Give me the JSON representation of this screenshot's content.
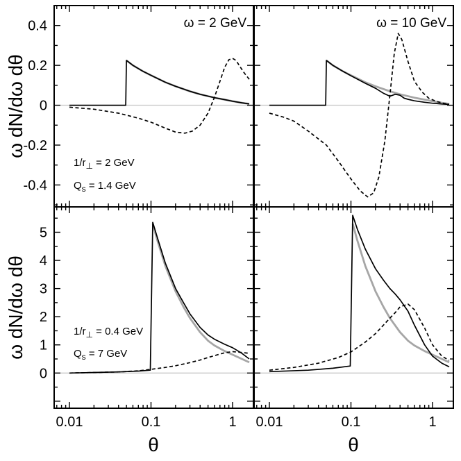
{
  "figure": {
    "ylabel": "ω dN/dω dθ",
    "xlabel": "θ"
  },
  "chart_data": [
    {
      "type": "line",
      "panel": "top-left",
      "title": "ω = 2 GeV",
      "xscale": "log",
      "xlim": [
        0.0065,
        1.8
      ],
      "ylim": [
        -0.51,
        0.5
      ],
      "xticks": [
        0.01,
        0.1,
        1
      ],
      "xtick_labels": [
        "0.01",
        "0.1",
        "1"
      ],
      "yticks": [
        -0.4,
        -0.2,
        0,
        0.2,
        0.4
      ],
      "ytick_labels": [
        "-0.4",
        "-0.2",
        "0",
        "0.2",
        "0.4"
      ],
      "annotations": [
        {
          "base": "1/r",
          "sub": "⊥",
          "tail": " = 2 GeV"
        },
        {
          "base": "Q",
          "sub": "s",
          "tail": " = 1.4 GeV"
        }
      ],
      "series": [
        {
          "name": "gray",
          "color": "#a6a6a6",
          "style": "solid",
          "x": [
            0.05,
            0.06,
            0.08,
            0.1,
            0.15,
            0.2,
            0.3,
            0.4,
            0.6,
            0.8,
            1.0,
            1.3,
            1.6
          ],
          "y": [
            0.225,
            0.2,
            0.17,
            0.15,
            0.115,
            0.095,
            0.07,
            0.055,
            0.038,
            0.028,
            0.02,
            0.012,
            0.007
          ]
        },
        {
          "name": "solid",
          "color": "#000000",
          "style": "solid",
          "x": [
            0.01,
            0.02,
            0.04,
            0.049,
            0.05,
            0.06,
            0.08,
            0.1,
            0.15,
            0.2,
            0.3,
            0.4,
            0.6,
            0.8,
            1.0,
            1.3,
            1.6
          ],
          "y": [
            0.0,
            0.0,
            0.0,
            0.0,
            0.225,
            0.2,
            0.17,
            0.15,
            0.115,
            0.095,
            0.07,
            0.055,
            0.038,
            0.028,
            0.02,
            0.012,
            0.007
          ]
        },
        {
          "name": "dashed",
          "color": "#000000",
          "style": "dashed",
          "x": [
            0.01,
            0.02,
            0.04,
            0.07,
            0.1,
            0.15,
            0.2,
            0.26,
            0.32,
            0.4,
            0.5,
            0.6,
            0.7,
            0.8,
            0.9,
            1.0,
            1.1,
            1.25,
            1.4,
            1.6
          ],
          "y": [
            -0.01,
            -0.02,
            -0.04,
            -0.065,
            -0.085,
            -0.115,
            -0.135,
            -0.14,
            -0.13,
            -0.1,
            -0.04,
            0.04,
            0.12,
            0.19,
            0.228,
            0.235,
            0.225,
            0.19,
            0.16,
            0.13
          ]
        }
      ]
    },
    {
      "type": "line",
      "panel": "top-right",
      "title": "ω = 10 GeV",
      "xscale": "log",
      "xlim": [
        0.0065,
        1.8
      ],
      "ylim": [
        -0.51,
        0.5
      ],
      "xticks": [
        0.01,
        0.1,
        1
      ],
      "xtick_labels": [
        "0.01",
        "0.1",
        "1"
      ],
      "yticks": [
        -0.4,
        -0.2,
        0,
        0.2,
        0.4
      ],
      "ytick_labels": [],
      "annotations": [],
      "series": [
        {
          "name": "gray",
          "color": "#a6a6a6",
          "style": "solid",
          "x": [
            0.05,
            0.06,
            0.08,
            0.1,
            0.15,
            0.2,
            0.3,
            0.4,
            0.6,
            0.8,
            1.0,
            1.3,
            1.6
          ],
          "y": [
            0.225,
            0.2,
            0.17,
            0.15,
            0.115,
            0.095,
            0.07,
            0.055,
            0.038,
            0.028,
            0.02,
            0.012,
            0.007
          ]
        },
        {
          "name": "solid",
          "color": "#000000",
          "style": "solid",
          "x": [
            0.01,
            0.02,
            0.04,
            0.049,
            0.05,
            0.06,
            0.08,
            0.1,
            0.15,
            0.2,
            0.25,
            0.3,
            0.35,
            0.4,
            0.45,
            0.5,
            0.6,
            0.8,
            1.0,
            1.3,
            1.6
          ],
          "y": [
            0.0,
            0.0,
            0.0,
            0.0,
            0.225,
            0.2,
            0.17,
            0.148,
            0.11,
            0.085,
            0.06,
            0.045,
            0.055,
            0.05,
            0.035,
            0.03,
            0.022,
            0.015,
            0.01,
            0.006,
            0.004
          ]
        },
        {
          "name": "dashed",
          "color": "#000000",
          "style": "dashed",
          "x": [
            0.01,
            0.015,
            0.02,
            0.03,
            0.05,
            0.07,
            0.1,
            0.13,
            0.16,
            0.19,
            0.22,
            0.26,
            0.3,
            0.34,
            0.38,
            0.42,
            0.5,
            0.6,
            0.75,
            0.9,
            1.1,
            1.35,
            1.6
          ],
          "y": [
            -0.04,
            -0.06,
            -0.08,
            -0.13,
            -0.2,
            -0.28,
            -0.37,
            -0.43,
            -0.46,
            -0.44,
            -0.36,
            -0.18,
            0.05,
            0.26,
            0.36,
            0.33,
            0.22,
            0.12,
            0.065,
            0.035,
            0.02,
            0.01,
            0.005
          ]
        }
      ]
    },
    {
      "type": "line",
      "panel": "bottom-left",
      "title": "",
      "xscale": "log",
      "xlim": [
        0.0065,
        1.8
      ],
      "ylim": [
        -1.25,
        5.9
      ],
      "xticks": [
        0.01,
        0.1,
        1
      ],
      "xtick_labels": [
        "0.01",
        "0.1",
        "1"
      ],
      "yticks": [
        0,
        1,
        2,
        3,
        4,
        5
      ],
      "ytick_labels": [
        "0",
        "1",
        "2",
        "3",
        "4",
        "5"
      ],
      "annotations": [
        {
          "base": "1/r",
          "sub": "⊥",
          "tail": " = 0.4 GeV"
        },
        {
          "base": "Q",
          "sub": "s",
          "tail": " = 7 GeV"
        }
      ],
      "series": [
        {
          "name": "gray",
          "color": "#a6a6a6",
          "style": "solid",
          "x": [
            0.105,
            0.12,
            0.15,
            0.2,
            0.25,
            0.3,
            0.4,
            0.5,
            0.6,
            0.8,
            1.0,
            1.3,
            1.6
          ],
          "y": [
            5.3,
            4.7,
            3.8,
            2.9,
            2.35,
            1.95,
            1.45,
            1.15,
            0.98,
            0.78,
            0.65,
            0.5,
            0.38
          ]
        },
        {
          "name": "solid",
          "color": "#000000",
          "style": "solid",
          "x": [
            0.01,
            0.02,
            0.04,
            0.07,
            0.098,
            0.105,
            0.12,
            0.15,
            0.2,
            0.25,
            0.3,
            0.4,
            0.5,
            0.6,
            0.8,
            1.0,
            1.3,
            1.6
          ],
          "y": [
            0.0,
            0.02,
            0.04,
            0.07,
            0.1,
            5.35,
            4.8,
            3.9,
            3.0,
            2.5,
            2.1,
            1.62,
            1.35,
            1.2,
            1.02,
            0.9,
            0.7,
            0.5
          ]
        },
        {
          "name": "dashed",
          "color": "#000000",
          "style": "dashed",
          "x": [
            0.01,
            0.02,
            0.04,
            0.07,
            0.1,
            0.15,
            0.2,
            0.3,
            0.4,
            0.5,
            0.6,
            0.8,
            1.0,
            1.2,
            1.6
          ],
          "y": [
            0.0,
            0.02,
            0.04,
            0.08,
            0.13,
            0.2,
            0.26,
            0.37,
            0.46,
            0.55,
            0.62,
            0.72,
            0.76,
            0.74,
            0.7
          ]
        }
      ]
    },
    {
      "type": "line",
      "panel": "bottom-right",
      "title": "",
      "xscale": "log",
      "xlim": [
        0.0065,
        1.8
      ],
      "ylim": [
        -1.25,
        5.9
      ],
      "xticks": [
        0.01,
        0.1,
        1
      ],
      "xtick_labels": [
        "0.01",
        "0.1",
        "1"
      ],
      "yticks": [
        0,
        1,
        2,
        3,
        4,
        5
      ],
      "ytick_labels": [],
      "annotations": [],
      "series": [
        {
          "name": "gray",
          "color": "#a6a6a6",
          "style": "solid",
          "x": [
            0.105,
            0.12,
            0.15,
            0.2,
            0.25,
            0.3,
            0.4,
            0.5,
            0.6,
            0.8,
            1.0,
            1.3,
            1.6
          ],
          "y": [
            5.3,
            4.7,
            3.8,
            2.9,
            2.35,
            1.95,
            1.45,
            1.15,
            0.98,
            0.78,
            0.65,
            0.5,
            0.38
          ]
        },
        {
          "name": "solid",
          "color": "#000000",
          "style": "solid",
          "x": [
            0.01,
            0.03,
            0.06,
            0.098,
            0.105,
            0.12,
            0.15,
            0.2,
            0.25,
            0.3,
            0.35,
            0.4,
            0.5,
            0.6,
            0.8,
            1.0,
            1.3,
            1.6
          ],
          "y": [
            0.05,
            0.1,
            0.17,
            0.25,
            5.6,
            5.1,
            4.4,
            3.7,
            3.3,
            3.0,
            2.8,
            2.6,
            2.2,
            1.7,
            1.0,
            0.6,
            0.35,
            0.22
          ]
        },
        {
          "name": "dashed",
          "color": "#000000",
          "style": "dashed",
          "x": [
            0.01,
            0.02,
            0.04,
            0.07,
            0.1,
            0.15,
            0.2,
            0.25,
            0.3,
            0.35,
            0.4,
            0.5,
            0.6,
            0.8,
            1.0,
            1.3,
            1.6
          ],
          "y": [
            0.1,
            0.2,
            0.35,
            0.55,
            0.75,
            1.1,
            1.4,
            1.7,
            1.95,
            2.15,
            2.35,
            2.45,
            2.25,
            1.6,
            1.0,
            0.6,
            0.45
          ]
        }
      ]
    }
  ]
}
